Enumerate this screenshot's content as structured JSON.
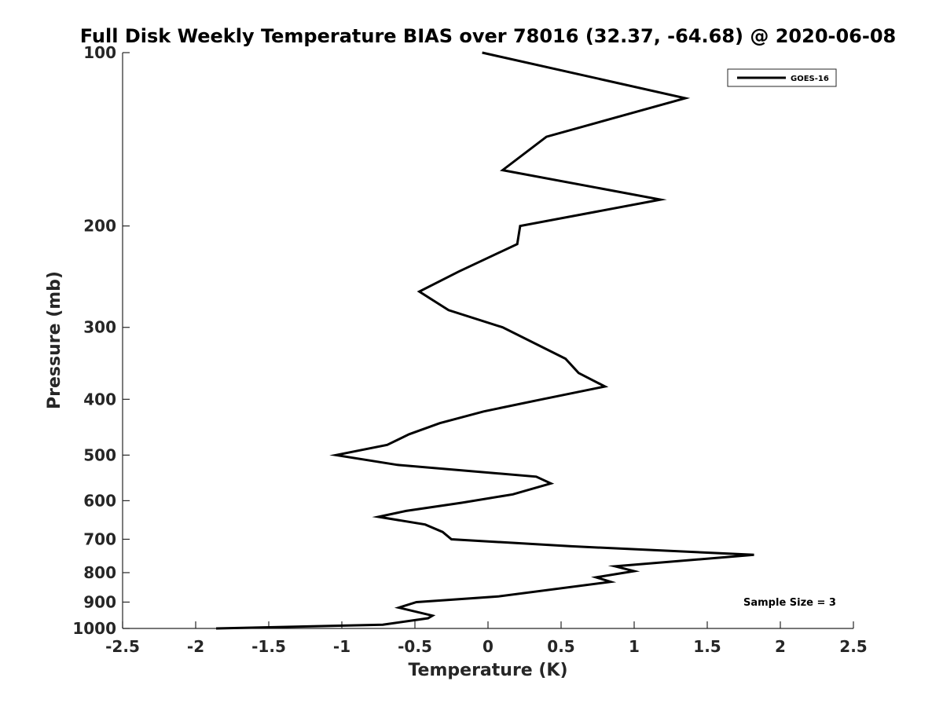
{
  "chart_data": {
    "type": "line",
    "title": "Full Disk Weekly Temperature BIAS over 78016 (32.37, -64.68) @ 2020-06-08",
    "xlabel": "Temperature (K)",
    "ylabel": "Pressure (mb)",
    "xlim": [
      -2.5,
      2.5
    ],
    "ylim": [
      100,
      1000
    ],
    "y_scale": "log",
    "y_reversed": true,
    "x_ticks": [
      -2.5,
      -2,
      -1.5,
      -1,
      -0.5,
      0,
      0.5,
      1,
      1.5,
      2,
      2.5
    ],
    "x_tick_labels": [
      "-2.5",
      "-2",
      "-1.5",
      "-1",
      "-0.5",
      "0",
      "0.5",
      "1",
      "1.5",
      "2",
      "2.5"
    ],
    "y_ticks": [
      100,
      200,
      300,
      400,
      500,
      600,
      700,
      800,
      900,
      1000
    ],
    "y_tick_labels": [
      "100",
      "200",
      "300",
      "400",
      "500",
      "600",
      "700",
      "800",
      "900",
      "1000"
    ],
    "grid": false,
    "legend_position": "top-right",
    "annotation": "Sample Size = 3",
    "series": [
      {
        "name": "GOES-16",
        "color": "#000000",
        "points": [
          {
            "x": -0.04,
            "y": 100
          },
          {
            "x": 1.35,
            "y": 120
          },
          {
            "x": 0.4,
            "y": 140
          },
          {
            "x": 0.1,
            "y": 160
          },
          {
            "x": 1.18,
            "y": 180
          },
          {
            "x": 0.22,
            "y": 200
          },
          {
            "x": 0.2,
            "y": 215
          },
          {
            "x": -0.2,
            "y": 240
          },
          {
            "x": -0.47,
            "y": 260
          },
          {
            "x": -0.27,
            "y": 280
          },
          {
            "x": 0.1,
            "y": 300
          },
          {
            "x": 0.53,
            "y": 340
          },
          {
            "x": 0.62,
            "y": 360
          },
          {
            "x": 0.8,
            "y": 380
          },
          {
            "x": 0.37,
            "y": 400
          },
          {
            "x": -0.03,
            "y": 420
          },
          {
            "x": -0.33,
            "y": 440
          },
          {
            "x": -0.54,
            "y": 460
          },
          {
            "x": -0.69,
            "y": 480
          },
          {
            "x": -1.04,
            "y": 500
          },
          {
            "x": -0.62,
            "y": 520
          },
          {
            "x": 0.33,
            "y": 545
          },
          {
            "x": 0.43,
            "y": 560
          },
          {
            "x": 0.17,
            "y": 585
          },
          {
            "x": -0.18,
            "y": 605
          },
          {
            "x": -0.56,
            "y": 625
          },
          {
            "x": -0.75,
            "y": 640
          },
          {
            "x": -0.43,
            "y": 660
          },
          {
            "x": -0.31,
            "y": 680
          },
          {
            "x": -0.25,
            "y": 700
          },
          {
            "x": 0.57,
            "y": 720
          },
          {
            "x": 1.82,
            "y": 745
          },
          {
            "x": 0.87,
            "y": 780
          },
          {
            "x": 1.0,
            "y": 795
          },
          {
            "x": 0.74,
            "y": 815
          },
          {
            "x": 0.84,
            "y": 830
          },
          {
            "x": 0.07,
            "y": 880
          },
          {
            "x": -0.49,
            "y": 900
          },
          {
            "x": -0.61,
            "y": 920
          },
          {
            "x": -0.38,
            "y": 950
          },
          {
            "x": -0.41,
            "y": 960
          },
          {
            "x": -0.72,
            "y": 985
          },
          {
            "x": -1.86,
            "y": 1000
          }
        ]
      }
    ]
  }
}
